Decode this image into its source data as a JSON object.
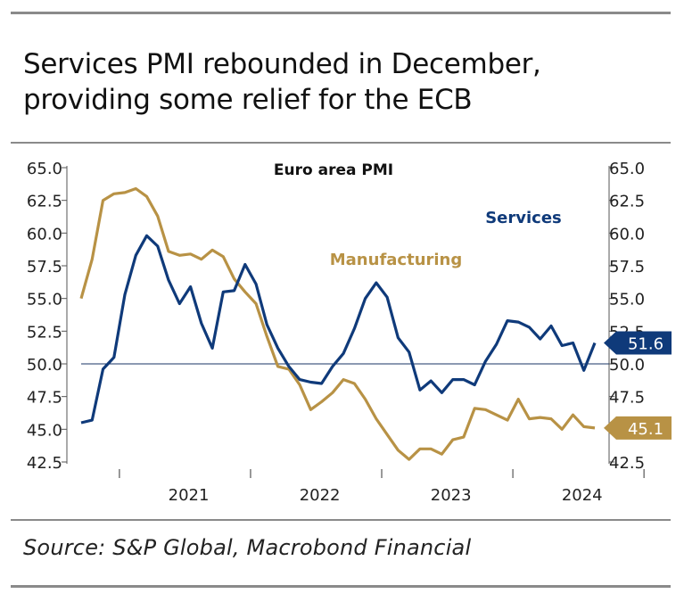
{
  "heading": {
    "line1": "Services PMI rebounded in December,",
    "line2": "providing some relief for the ECB"
  },
  "source": "Source: S&P Global, Macrobond Financial",
  "colors": {
    "services": "#0f3a7a",
    "manufacturing": "#b89245",
    "axis": "#555555",
    "baseline": "#1a3566"
  },
  "chart_data": {
    "type": "line",
    "title": "Euro area PMI",
    "xlabel": "",
    "ylabel": "",
    "ylim": [
      42.5,
      65.0
    ],
    "yticks": [
      65.0,
      62.5,
      60.0,
      57.5,
      55.0,
      52.5,
      50.0,
      47.5,
      45.0,
      42.5
    ],
    "ytick_labels": [
      "65.0",
      "62.5",
      "60.0",
      "57.5",
      "55.0",
      "52.5",
      "50.0",
      "47.5",
      "45.0",
      "42.5"
    ],
    "reference_line": 50.0,
    "x_start": "2020-09",
    "x_end": "2024-12",
    "year_labels": [
      "2021",
      "2022",
      "2023",
      "2024"
    ],
    "series": [
      {
        "name": "Services",
        "end_label": "51.6",
        "values": [
          45.5,
          45.7,
          49.6,
          50.5,
          55.3,
          58.3,
          59.8,
          59.0,
          56.4,
          54.6,
          55.9,
          53.1,
          51.2,
          55.5,
          55.6,
          57.6,
          56.1,
          53.0,
          51.2,
          49.8,
          48.8,
          48.6,
          48.5,
          49.8,
          50.8,
          52.7,
          55.0,
          56.2,
          55.1,
          52.0,
          50.9,
          48.0,
          48.7,
          47.8,
          48.8,
          48.8,
          48.4,
          50.2,
          51.5,
          53.3,
          53.2,
          52.8,
          51.9,
          52.9,
          51.4,
          51.6,
          49.5,
          51.6
        ]
      },
      {
        "name": "Manufacturing",
        "end_label": "45.1",
        "values": [
          55.0,
          58.0,
          62.5,
          63.0,
          63.1,
          63.4,
          62.8,
          61.3,
          58.6,
          58.3,
          58.4,
          58.0,
          58.7,
          58.2,
          56.5,
          55.5,
          54.6,
          52.1,
          49.8,
          49.6,
          48.4,
          46.5,
          47.1,
          47.8,
          48.8,
          48.5,
          47.3,
          45.8,
          44.6,
          43.4,
          42.7,
          43.5,
          43.5,
          43.1,
          44.2,
          44.4,
          46.6,
          46.5,
          46.1,
          45.7,
          47.3,
          45.8,
          45.9,
          45.8,
          45.0,
          46.1,
          45.2,
          45.1
        ]
      }
    ],
    "series_label_services": "Services",
    "series_label_manufacturing": "Manufacturing"
  }
}
